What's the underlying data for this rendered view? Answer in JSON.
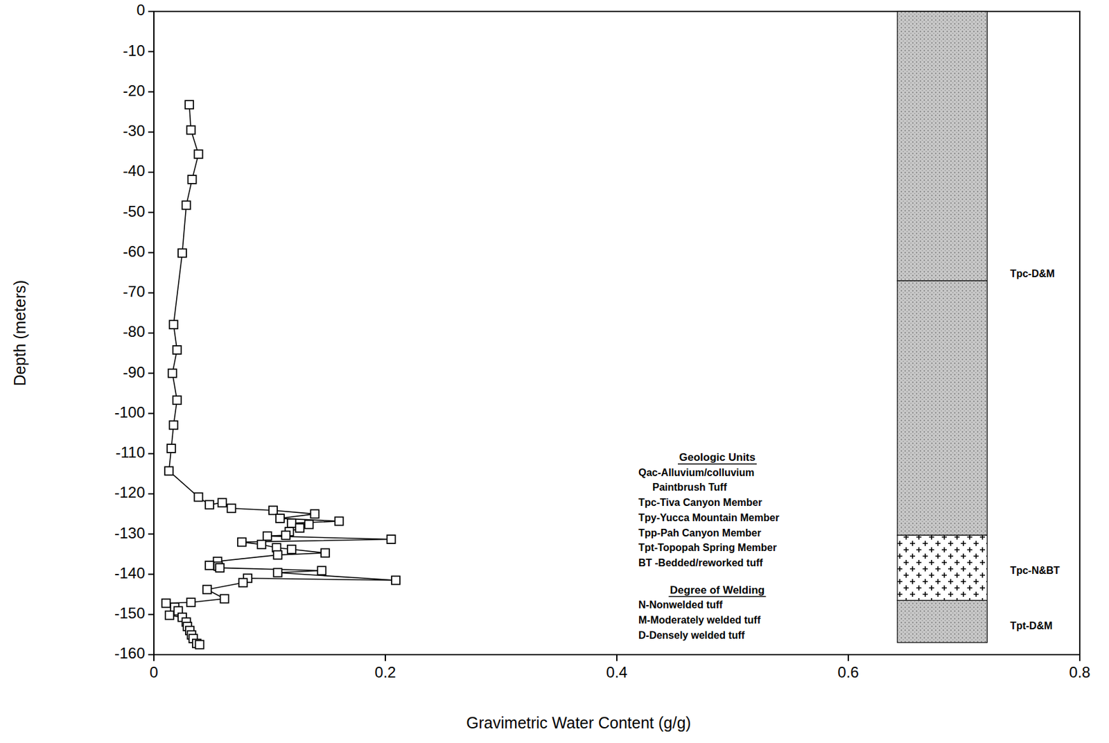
{
  "chart_data": {
    "type": "line",
    "x_label": "Gravimetric Water Content (g/g)",
    "y_label": "Depth (meters)",
    "xlim": [
      0,
      0.8
    ],
    "xticks": [
      0,
      0.2,
      0.4,
      0.6,
      0.8
    ],
    "ylim": [
      -160,
      0
    ],
    "yticks": [
      0,
      -10,
      -20,
      -30,
      -40,
      -50,
      -60,
      -70,
      -80,
      -90,
      -100,
      -110,
      -120,
      -130,
      -140,
      -150,
      -160
    ],
    "color": "#000000",
    "marker": "square",
    "line_style": "solid",
    "x": [
      0.0306,
      0.032,
      0.0385,
      0.033,
      0.028,
      0.0245,
      0.017,
      0.02,
      0.016,
      0.02,
      0.017,
      0.015,
      0.013,
      0.0385,
      0.048,
      0.059,
      0.067,
      0.103,
      0.139,
      0.109,
      0.16,
      0.119,
      0.134,
      0.126,
      0.117,
      0.114,
      0.098,
      0.205,
      0.076,
      0.093,
      0.106,
      0.119,
      0.148,
      0.107,
      0.055,
      0.0555,
      0.048,
      0.057,
      0.145,
      0.107,
      0.209,
      0.081,
      0.077,
      0.046,
      0.061,
      0.032,
      0.0105,
      0.018,
      0.021,
      0.0135,
      0.0245,
      0.028,
      0.029,
      0.031,
      0.0325,
      0.034,
      0.037,
      0.0395
    ],
    "values": [
      -23.2,
      -29.5,
      -35.5,
      -41.8,
      -48.2,
      -60.1,
      -77.9,
      -84.2,
      -90,
      -96.7,
      -102.9,
      -108.7,
      -114.3,
      -120.8,
      -122.7,
      -122.2,
      -123.6,
      -124.1,
      -125,
      -126.1,
      -126.8,
      -127.3,
      -127.6,
      -128.5,
      -129.4,
      -130.3,
      -130.5,
      -131.3,
      -132,
      -132.6,
      -133.4,
      -133.8,
      -134.7,
      -135.2,
      -136.8,
      -138,
      -137.8,
      -138.4,
      -139.1,
      -139.6,
      -141.5,
      -141,
      -142.1,
      -143.8,
      -146.1,
      -147,
      -147.2,
      -148.2,
      -149.1,
      -150.2,
      -150.7,
      -151.9,
      -153,
      -154,
      -155.1,
      -156,
      -157.2,
      -157.5
    ],
    "column": [
      {
        "top": 0,
        "bottom": -67,
        "pattern": "welded"
      },
      {
        "top": -67,
        "bottom": -130.3,
        "pattern": "welded"
      },
      {
        "top": -130.3,
        "bottom": -146.5,
        "pattern": "nonwelded"
      },
      {
        "top": -146.5,
        "bottom": -157,
        "pattern": "welded"
      }
    ],
    "column_labels": [
      {
        "text": "Tpc-D&M",
        "depth": -65.4
      },
      {
        "text": "Tpc-N&BT",
        "depth": -139.3
      },
      {
        "text": "Tpt-D&M",
        "depth": -153
      }
    ],
    "annotations": {
      "units_title": "Geologic Units",
      "units": [
        "Qac-Alluvium/colluvium"
      ],
      "units_subtitle": "Paintbrush Tuff",
      "members": [
        "Tpc-Tiva Canyon Member",
        "Tpy-Yucca Mountain Member",
        "Tpp-Pah Canyon Member",
        "Tpt-Topopah Spring Member",
        "BT -Bedded/reworked tuff"
      ],
      "welding_title": "Degree of Welding",
      "welding": [
        "N-Nonwelded tuff",
        "M-Moderately welded tuff",
        "D-Densely welded tuff"
      ]
    }
  }
}
